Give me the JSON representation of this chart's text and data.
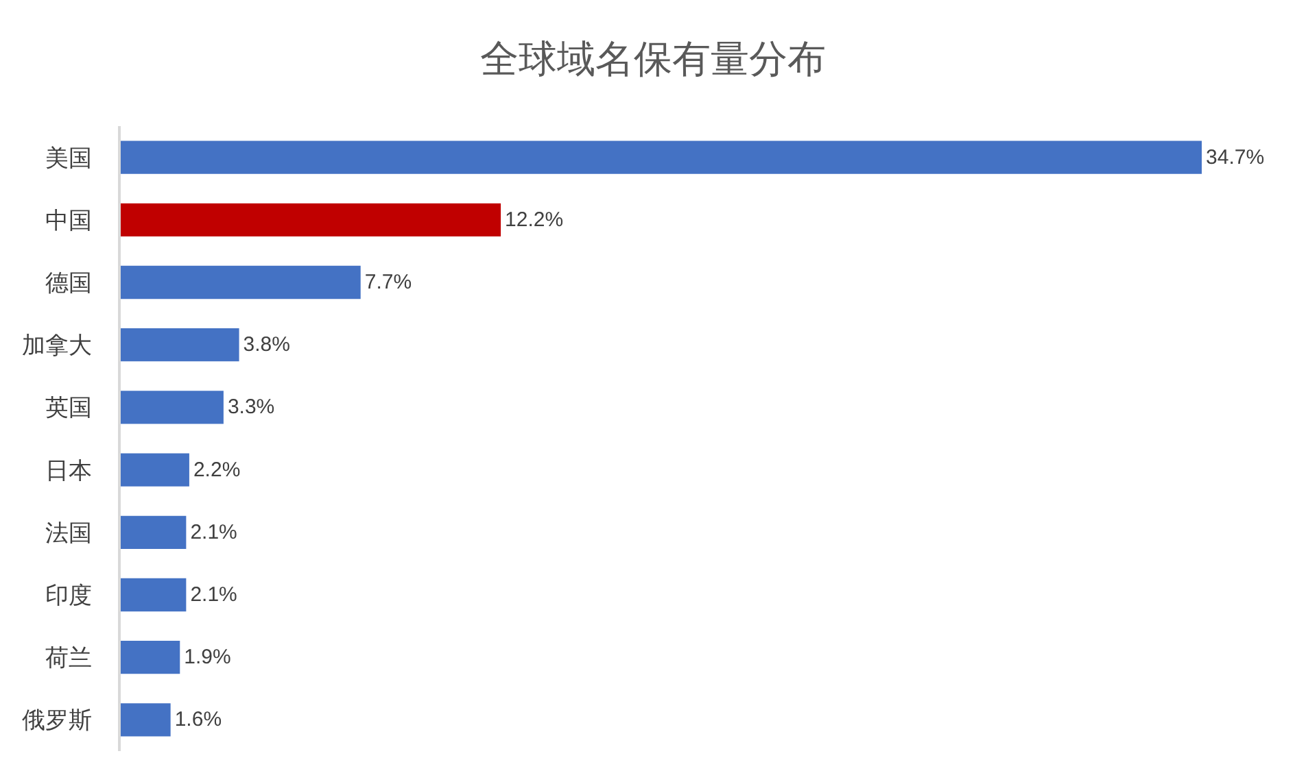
{
  "chart_data": {
    "type": "bar",
    "orientation": "horizontal",
    "title": "全球域名保有量分布",
    "categories": [
      "美国",
      "中国",
      "德国",
      "加拿大",
      "英国",
      "日本",
      "法国",
      "印度",
      "荷兰",
      "俄罗斯"
    ],
    "values": [
      34.7,
      12.2,
      7.7,
      3.8,
      3.3,
      2.2,
      2.1,
      2.1,
      1.9,
      1.6
    ],
    "colors": [
      "#4472c4",
      "#c00000",
      "#4472c4",
      "#4472c4",
      "#4472c4",
      "#4472c4",
      "#4472c4",
      "#4472c4",
      "#4472c4",
      "#4472c4"
    ],
    "value_labels": [
      "34.7%",
      "12.2%",
      "7.7%",
      "3.8%",
      "3.3%",
      "2.2%",
      "2.1%",
      "2.1%",
      "1.9%",
      "1.6%"
    ]
  }
}
